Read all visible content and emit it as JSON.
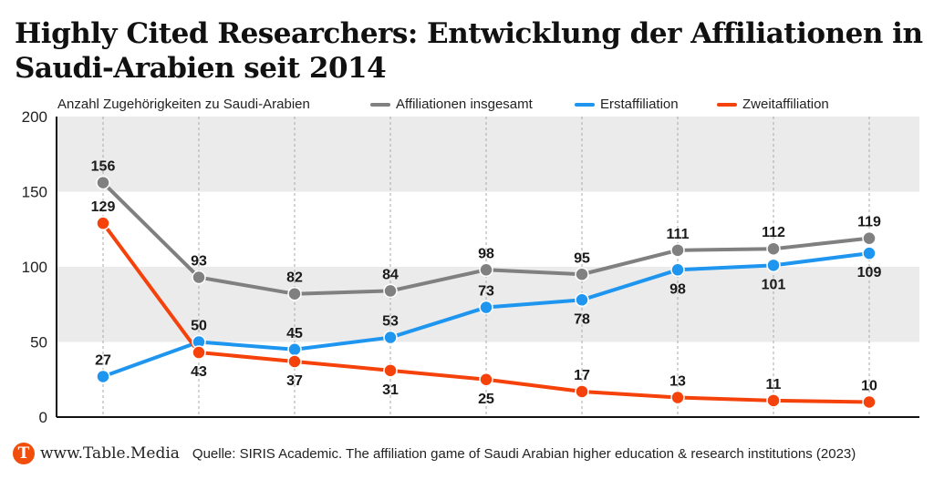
{
  "title": "Highly Cited Researchers: Entwicklung der Affiliationen in Saudi-Arabien seit 2014",
  "title_lines": [
    "Highly Cited Researchers: Entwicklung der Affiliationen in",
    "Saudi-Arabien seit 2014"
  ],
  "footer": {
    "logo_letter": "T",
    "site": "www.Table.Media",
    "source": "Quelle: SIRIS Academic. The affiliation game of Saudi Arabian higher education & research institutions  (2023)"
  },
  "chart_data": {
    "type": "line",
    "title": "Highly Cited Researchers: Entwicklung der Affiliationen in Saudi-Arabien seit 2014",
    "ylabel": "Anzahl Zugehörigkeiten zu Saudi-Arabien",
    "xlabel": "",
    "x": [
      1,
      2,
      3,
      4,
      5,
      6,
      7,
      8,
      9
    ],
    "ylim": [
      0,
      200
    ],
    "yticks": [
      0,
      50,
      100,
      150,
      200
    ],
    "grid": "alternating horizontal bands, dashed vertical lines",
    "legend": "top-right",
    "series": [
      {
        "name": "Affiliationen insgesamt",
        "color": "#808080",
        "values": [
          156,
          93,
          82,
          84,
          98,
          95,
          111,
          112,
          119
        ],
        "label_pos": "above"
      },
      {
        "name": "Erstaffiliation",
        "color": "#1e96f0",
        "values": [
          27,
          50,
          45,
          53,
          73,
          78,
          98,
          101,
          109
        ],
        "label_pos": [
          "above",
          "above",
          "above",
          "above",
          "above",
          "below",
          "below",
          "below",
          "below"
        ]
      },
      {
        "name": "Zweitaffiliation",
        "color": "#f5410a",
        "values": [
          129,
          43,
          37,
          31,
          25,
          17,
          13,
          11,
          10
        ],
        "label_pos": [
          "above",
          "below",
          "below",
          "below",
          "below",
          "above",
          "above",
          "above",
          "above"
        ]
      }
    ]
  }
}
